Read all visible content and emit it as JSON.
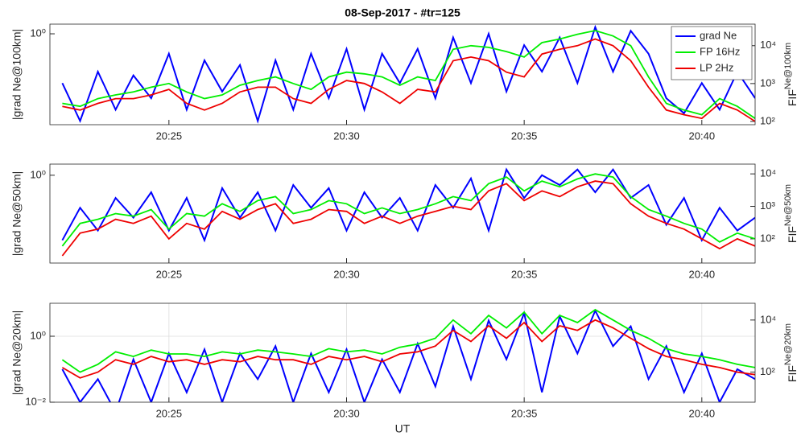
{
  "chart_data": [
    {
      "type": "line",
      "title": "08-Sep-2017 - #tr=125",
      "ylabel": "|grad Ne@100km|",
      "y2label": "FIF",
      "y2label_sup": "Ne@100km",
      "legend": "upper right",
      "grid": false,
      "ylog": true,
      "y2log": true,
      "xlim": [
        1221.65,
        1241.5
      ],
      "xticks": [
        {
          "value": 1225,
          "label": "20:25"
        },
        {
          "value": 1230,
          "label": "20:30"
        },
        {
          "value": 1235,
          "label": "20:35"
        },
        {
          "value": 1240,
          "label": "20:40"
        }
      ],
      "ylim": [
        0.004,
        1.8
      ],
      "yticks": [
        {
          "value": 1,
          "label": "10⁰"
        }
      ],
      "y2lim": [
        82,
        37000
      ],
      "y2ticks": [
        {
          "value": 100,
          "label": "10²"
        },
        {
          "value": 1000,
          "label": "10³"
        },
        {
          "value": 10000,
          "label": "10⁴"
        }
      ],
      "x": [
        1222,
        1222.5,
        1223,
        1223.5,
        1224,
        1224.5,
        1225,
        1225.5,
        1226,
        1226.5,
        1227,
        1227.5,
        1228,
        1228.5,
        1229,
        1229.5,
        1230,
        1230.5,
        1231,
        1231.5,
        1232,
        1232.5,
        1233,
        1233.5,
        1234,
        1234.5,
        1235,
        1235.5,
        1236,
        1236.5,
        1237,
        1237.5,
        1238,
        1238.5,
        1239,
        1239.5,
        1240,
        1240.5,
        1241,
        1241.5
      ],
      "series": [
        {
          "name": "grad Ne",
          "color": "#0000ff",
          "values": [
            0.05,
            0.005,
            0.1,
            0.01,
            0.08,
            0.02,
            0.3,
            0.01,
            0.2,
            0.03,
            0.15,
            0.005,
            0.2,
            0.01,
            0.3,
            0.02,
            0.4,
            0.01,
            0.3,
            0.05,
            0.4,
            0.02,
            0.8,
            0.05,
            1.0,
            0.03,
            0.5,
            0.1,
            0.8,
            0.05,
            1.5,
            0.1,
            1.2,
            0.3,
            0.02,
            0.008,
            0.05,
            0.01,
            0.1,
            0.02
          ]
        },
        {
          "name": "FP 16Hz",
          "color": "#00ee00",
          "axis": "y2",
          "values": [
            300,
            250,
            400,
            500,
            600,
            800,
            1000,
            600,
            400,
            500,
            900,
            1200,
            1500,
            1000,
            700,
            1500,
            2000,
            1800,
            1500,
            900,
            1500,
            1200,
            8000,
            10000,
            9000,
            7000,
            5000,
            12000,
            15000,
            20000,
            25000,
            18000,
            10000,
            1500,
            300,
            200,
            150,
            400,
            250,
            120
          ]
        },
        {
          "name": "LP 2Hz",
          "color": "#ee0000",
          "axis": "y2",
          "values": [
            250,
            200,
            300,
            400,
            400,
            500,
            700,
            300,
            200,
            300,
            600,
            800,
            800,
            400,
            300,
            700,
            1200,
            1000,
            600,
            300,
            700,
            600,
            4000,
            5000,
            4000,
            2000,
            1500,
            6000,
            8000,
            10000,
            15000,
            10000,
            4000,
            800,
            200,
            150,
            120,
            300,
            200,
            100
          ]
        }
      ]
    },
    {
      "type": "line",
      "ylabel": "|grad Ne@50km|",
      "y2label": "FIF",
      "y2label_sup": "Ne@50km",
      "grid": false,
      "ylog": true,
      "y2log": true,
      "xlim": [
        1221.65,
        1241.5
      ],
      "xticks": [
        {
          "value": 1225,
          "label": "20:25"
        },
        {
          "value": 1230,
          "label": "20:30"
        },
        {
          "value": 1235,
          "label": "20:35"
        },
        {
          "value": 1240,
          "label": "20:40"
        }
      ],
      "ylim": [
        0.002,
        2.2
      ],
      "yticks": [
        {
          "value": 1,
          "label": "10⁰"
        }
      ],
      "y2lim": [
        18,
        20000
      ],
      "y2ticks": [
        {
          "value": 100,
          "label": "10²"
        },
        {
          "value": 1000,
          "label": "10³"
        },
        {
          "value": 10000,
          "label": "10⁴"
        }
      ],
      "x": [
        1222,
        1222.5,
        1223,
        1223.5,
        1224,
        1224.5,
        1225,
        1225.5,
        1226,
        1226.5,
        1227,
        1227.5,
        1228,
        1228.5,
        1229,
        1229.5,
        1230,
        1230.5,
        1231,
        1231.5,
        1232,
        1232.5,
        1233,
        1233.5,
        1234,
        1234.5,
        1235,
        1235.5,
        1236,
        1236.5,
        1237,
        1237.5,
        1238,
        1238.5,
        1239,
        1239.5,
        1240,
        1240.5,
        1241,
        1241.5
      ],
      "series": [
        {
          "color": "#0000ff",
          "values": [
            0.01,
            0.1,
            0.02,
            0.2,
            0.05,
            0.3,
            0.02,
            0.2,
            0.01,
            0.4,
            0.05,
            0.3,
            0.02,
            0.5,
            0.1,
            0.4,
            0.02,
            0.3,
            0.05,
            0.2,
            0.02,
            0.5,
            0.1,
            0.8,
            0.02,
            1.5,
            0.2,
            1.0,
            0.5,
            1.5,
            0.3,
            1.5,
            0.2,
            0.5,
            0.03,
            0.2,
            0.01,
            0.1,
            0.02,
            0.05
          ]
        },
        {
          "color": "#00ee00",
          "axis": "y2",
          "values": [
            60,
            300,
            400,
            600,
            500,
            800,
            200,
            600,
            500,
            1200,
            700,
            1500,
            2000,
            600,
            800,
            1500,
            1200,
            600,
            900,
            600,
            800,
            1200,
            2000,
            1500,
            5000,
            8000,
            3000,
            6000,
            4000,
            7000,
            10000,
            8000,
            2000,
            800,
            500,
            300,
            200,
            80,
            150,
            100
          ]
        },
        {
          "color": "#ee0000",
          "axis": "y2",
          "values": [
            30,
            150,
            200,
            400,
            300,
            500,
            100,
            300,
            200,
            700,
            400,
            800,
            1200,
            300,
            400,
            800,
            700,
            300,
            500,
            300,
            500,
            700,
            1000,
            800,
            3000,
            5000,
            1500,
            3000,
            2000,
            4000,
            6000,
            5000,
            1200,
            500,
            300,
            200,
            100,
            50,
            100,
            60
          ]
        }
      ]
    },
    {
      "type": "line",
      "ylabel": "|grad Ne@20km|",
      "y2label": "FIF",
      "y2label_sup": "Ne@20km",
      "xlabel": "UT",
      "grid": true,
      "ylog": true,
      "y2log": true,
      "xlim": [
        1221.65,
        1241.5
      ],
      "xticks": [
        {
          "value": 1225,
          "label": "20:25"
        },
        {
          "value": 1230,
          "label": "20:30"
        },
        {
          "value": 1235,
          "label": "20:35"
        },
        {
          "value": 1240,
          "label": "20:40"
        }
      ],
      "ylim": [
        0.01,
        10
      ],
      "yticks": [
        {
          "value": 0.01,
          "label": "10⁻²"
        },
        {
          "value": 1,
          "label": "10⁰"
        }
      ],
      "y2lim": [
        7,
        44000
      ],
      "y2ticks": [
        {
          "value": 100,
          "label": "10²"
        },
        {
          "value": 10000,
          "label": "10⁴"
        }
      ],
      "x": [
        1222,
        1222.5,
        1223,
        1223.5,
        1224,
        1224.5,
        1225,
        1225.5,
        1226,
        1226.5,
        1227,
        1227.5,
        1228,
        1228.5,
        1229,
        1229.5,
        1230,
        1230.5,
        1231,
        1231.5,
        1232,
        1232.5,
        1233,
        1233.5,
        1234,
        1234.5,
        1235,
        1235.5,
        1236,
        1236.5,
        1237,
        1237.5,
        1238,
        1238.5,
        1239,
        1239.5,
        1240,
        1240.5,
        1241,
        1241.5
      ],
      "series": [
        {
          "color": "#0000ff",
          "values": [
            0.1,
            0.01,
            0.05,
            0.005,
            0.2,
            0.01,
            0.3,
            0.02,
            0.4,
            0.01,
            0.3,
            0.05,
            0.5,
            0.01,
            0.3,
            0.02,
            0.4,
            0.01,
            0.2,
            0.02,
            0.6,
            0.03,
            2.0,
            0.05,
            3.0,
            0.2,
            5.0,
            0.02,
            4.0,
            0.3,
            6.0,
            0.5,
            2.0,
            0.05,
            0.5,
            0.02,
            0.3,
            0.01,
            0.1,
            0.05
          ]
        },
        {
          "color": "#00ee00",
          "axis": "y2",
          "values": [
            300,
            100,
            200,
            600,
            400,
            700,
            500,
            500,
            400,
            600,
            500,
            700,
            600,
            500,
            400,
            800,
            600,
            700,
            500,
            900,
            1200,
            2000,
            10000,
            3000,
            15000,
            5000,
            20000,
            3000,
            15000,
            8000,
            25000,
            10000,
            4000,
            2000,
            800,
            500,
            400,
            300,
            200,
            150
          ]
        },
        {
          "color": "#ee0000",
          "axis": "y2",
          "values": [
            150,
            60,
            100,
            300,
            200,
            400,
            250,
            300,
            200,
            300,
            250,
            400,
            300,
            300,
            200,
            400,
            300,
            400,
            250,
            500,
            600,
            1000,
            4000,
            1500,
            6000,
            2000,
            8000,
            1500,
            6000,
            4000,
            10000,
            5000,
            2000,
            800,
            400,
            300,
            200,
            150,
            100,
            80
          ]
        }
      ]
    }
  ]
}
